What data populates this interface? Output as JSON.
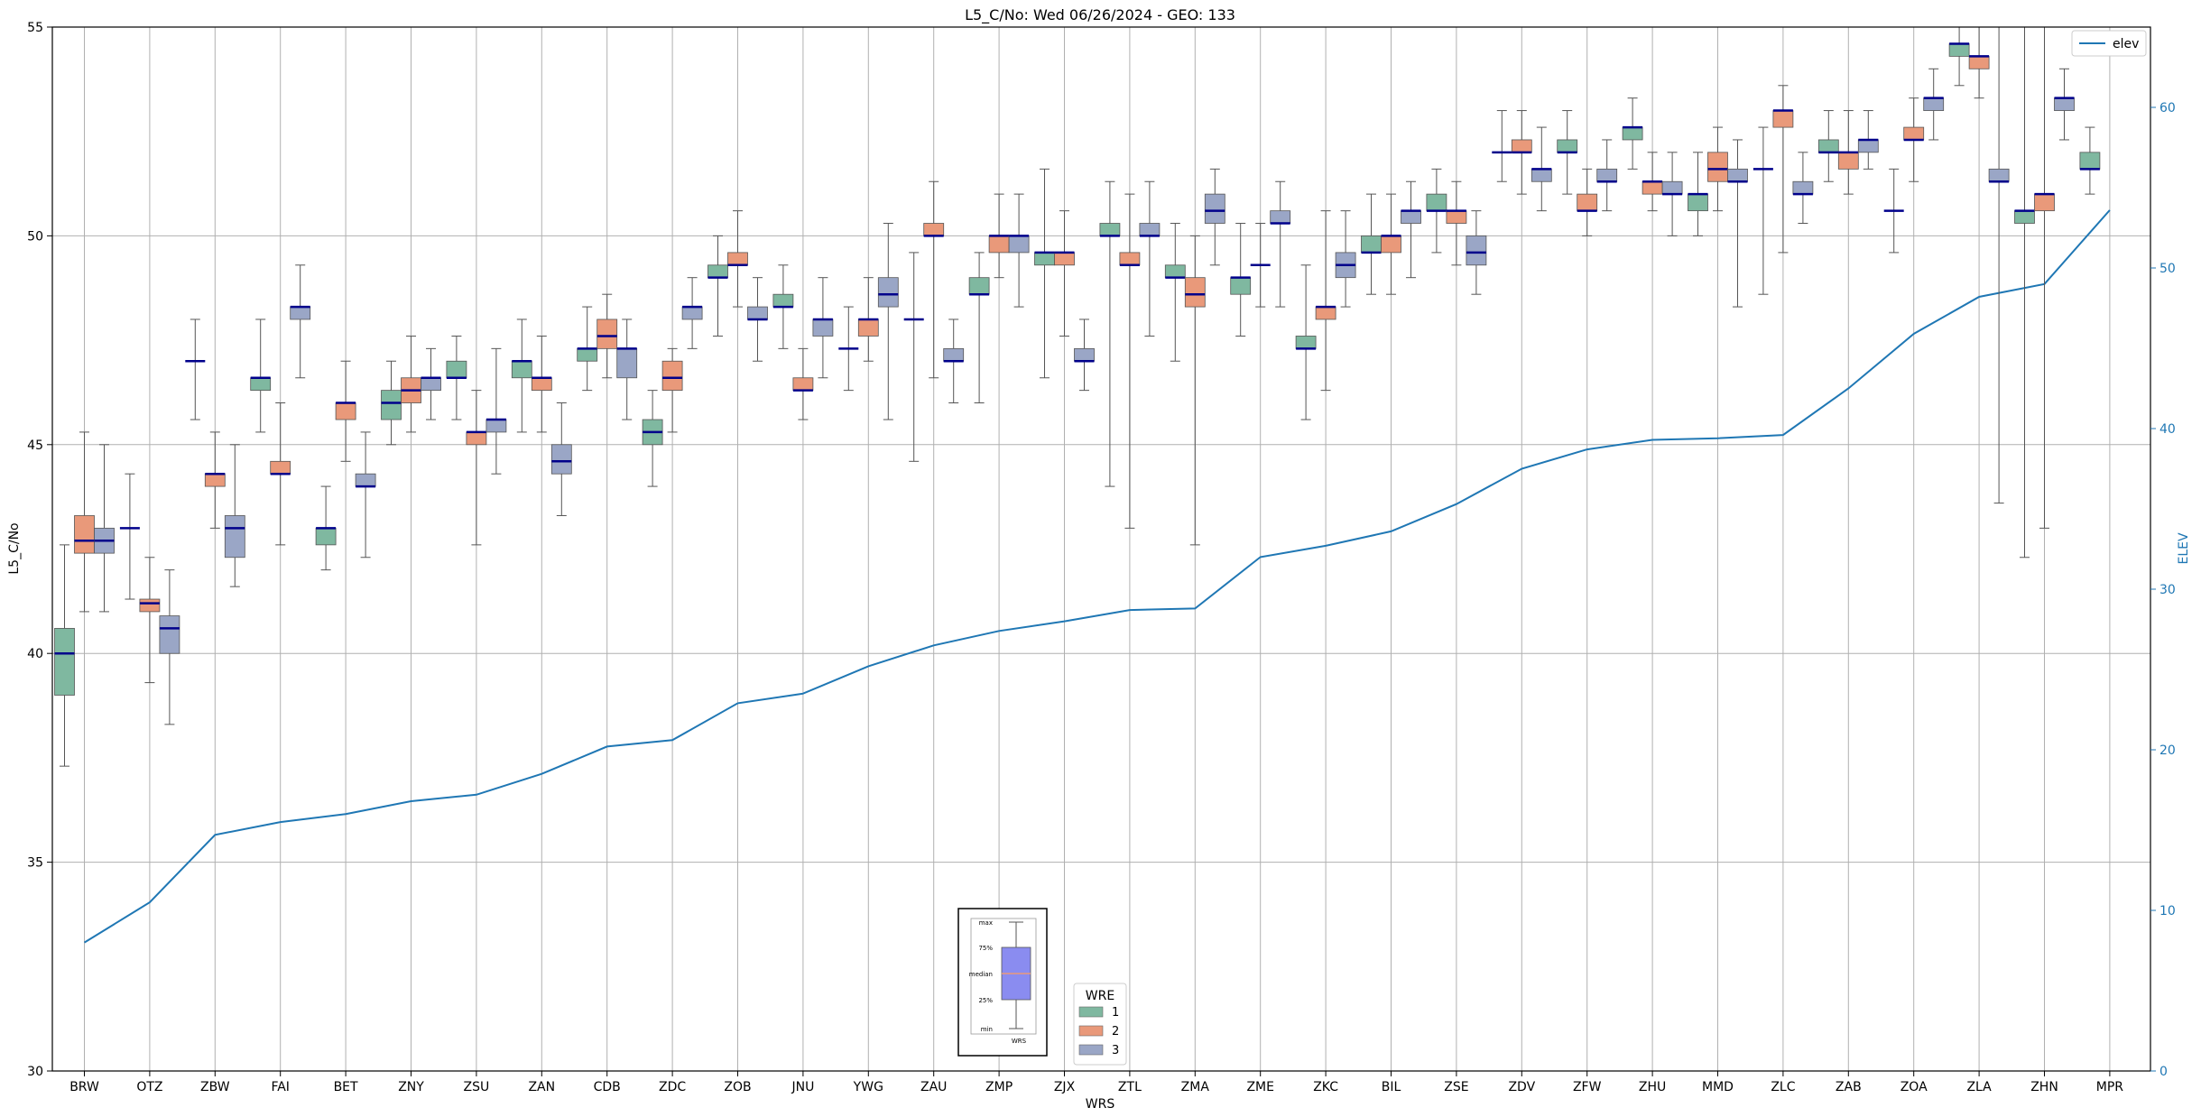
{
  "chart_data": {
    "type": "box",
    "title": "L5_C/No: Wed 06/26/2024 - GEO: 133",
    "xlabel": "WRS",
    "ylabel": "L5_C/No",
    "y2label": "ELEV",
    "ylim": [
      30,
      55
    ],
    "y2lim": [
      0,
      65
    ],
    "yticks": [
      30,
      35,
      40,
      45,
      50,
      55
    ],
    "y2ticks": [
      0,
      10,
      20,
      30,
      40,
      50,
      60
    ],
    "grid": true,
    "categories": [
      "BRW",
      "OTZ",
      "ZBW",
      "FAI",
      "BET",
      "ZNY",
      "ZSU",
      "ZAN",
      "CDB",
      "ZDC",
      "ZOB",
      "JNU",
      "YWG",
      "ZAU",
      "ZMP",
      "ZJX",
      "ZTL",
      "ZMA",
      "ZME",
      "ZKC",
      "BIL",
      "ZSE",
      "ZDV",
      "ZFW",
      "ZHU",
      "MMD",
      "ZLC",
      "ZAB",
      "ZOA",
      "ZLA",
      "ZHN",
      "MPR"
    ],
    "legend": {
      "title": "WRE",
      "placement": "bottom-center",
      "entries": [
        {
          "name": "1",
          "color": "#7fb8a0"
        },
        {
          "name": "2",
          "color": "#e9997a"
        },
        {
          "name": "3",
          "color": "#9aa6c6"
        }
      ]
    },
    "line_legend": {
      "label": "elev",
      "placement": "top-right",
      "color": "#1f77b4"
    },
    "inset_key": {
      "labels": [
        "max",
        "75%",
        "median",
        "25%",
        "min"
      ],
      "xlabel": "WRS"
    },
    "median_color": "#00008b",
    "elev_line": {
      "name": "elev",
      "color": "#1f77b4",
      "values": [
        8,
        10.5,
        14.7,
        15.5,
        16,
        16.8,
        17.2,
        18.5,
        20.2,
        20.6,
        22.9,
        23.5,
        25.2,
        26.5,
        27.4,
        28,
        28.7,
        28.8,
        32,
        32.7,
        33.6,
        35.3,
        37.5,
        38.7,
        39.3,
        39.4,
        39.6,
        42.5,
        45.9,
        48.2,
        49,
        53.6
      ]
    },
    "boxes": [
      [
        {
          "min": 37.3,
          "q1": 39,
          "median": 40,
          "q3": 40.6,
          "max": 42.6
        },
        {
          "min": 41,
          "q1": 42.4,
          "median": 42.7,
          "q3": 43.3,
          "max": 45.3
        },
        {
          "min": 41,
          "q1": 42.4,
          "median": 42.7,
          "q3": 43,
          "max": 45
        }
      ],
      [
        {
          "min": 41.3,
          "q1": 43,
          "median": 43,
          "q3": 43,
          "max": 44.3
        },
        {
          "min": 39.3,
          "q1": 41,
          "median": 41.2,
          "q3": 41.3,
          "max": 42.3
        },
        {
          "min": 38.3,
          "q1": 40,
          "median": 40.6,
          "q3": 40.9,
          "max": 42
        }
      ],
      [
        {
          "min": 45.6,
          "q1": 47,
          "median": 47,
          "q3": 47,
          "max": 48
        },
        {
          "min": 43,
          "q1": 44,
          "median": 44.3,
          "q3": 44.3,
          "max": 45.3
        },
        {
          "min": 41.6,
          "q1": 42.3,
          "median": 43,
          "q3": 43.3,
          "max": 45
        }
      ],
      [
        {
          "min": 45.3,
          "q1": 46.3,
          "median": 46.6,
          "q3": 46.6,
          "max": 48
        },
        {
          "min": 42.6,
          "q1": 44.3,
          "median": 44.3,
          "q3": 44.6,
          "max": 46
        },
        {
          "min": 46.6,
          "q1": 48,
          "median": 48.3,
          "q3": 48.3,
          "max": 49.3
        }
      ],
      [
        {
          "min": 42,
          "q1": 42.6,
          "median": 43,
          "q3": 43,
          "max": 44
        },
        {
          "min": 44.6,
          "q1": 45.6,
          "median": 46,
          "q3": 46,
          "max": 47
        },
        {
          "min": 42.3,
          "q1": 44,
          "median": 44,
          "q3": 44.3,
          "max": 45.3
        }
      ],
      [
        {
          "min": 45,
          "q1": 45.6,
          "median": 46,
          "q3": 46.3,
          "max": 47
        },
        {
          "min": 45.3,
          "q1": 46,
          "median": 46.3,
          "q3": 46.6,
          "max": 47.6
        },
        {
          "min": 45.6,
          "q1": 46.3,
          "median": 46.6,
          "q3": 46.6,
          "max": 47.3
        }
      ],
      [
        {
          "min": 45.6,
          "q1": 46.6,
          "median": 46.6,
          "q3": 47,
          "max": 47.6
        },
        {
          "min": 42.6,
          "q1": 45,
          "median": 45.3,
          "q3": 45.3,
          "max": 46.3
        },
        {
          "min": 44.3,
          "q1": 45.3,
          "median": 45.6,
          "q3": 45.6,
          "max": 47.3
        }
      ],
      [
        {
          "min": 45.3,
          "q1": 46.6,
          "median": 47,
          "q3": 47,
          "max": 48
        },
        {
          "min": 45.3,
          "q1": 46.3,
          "median": 46.6,
          "q3": 46.6,
          "max": 47.6
        },
        {
          "min": 43.3,
          "q1": 44.3,
          "median": 44.6,
          "q3": 45,
          "max": 46
        }
      ],
      [
        {
          "min": 46.3,
          "q1": 47,
          "median": 47.3,
          "q3": 47.3,
          "max": 48.3
        },
        {
          "min": 46.6,
          "q1": 47.3,
          "median": 47.6,
          "q3": 48,
          "max": 48.6
        },
        {
          "min": 45.6,
          "q1": 46.6,
          "median": 47.3,
          "q3": 47.3,
          "max": 48
        }
      ],
      [
        {
          "min": 44,
          "q1": 45,
          "median": 45.3,
          "q3": 45.6,
          "max": 46.3
        },
        {
          "min": 45.3,
          "q1": 46.3,
          "median": 46.6,
          "q3": 47,
          "max": 47.3
        },
        {
          "min": 47.3,
          "q1": 48,
          "median": 48.3,
          "q3": 48.3,
          "max": 49
        }
      ],
      [
        {
          "min": 47.6,
          "q1": 49,
          "median": 49,
          "q3": 49.3,
          "max": 50
        },
        {
          "min": 48.3,
          "q1": 49.3,
          "median": 49.3,
          "q3": 49.6,
          "max": 50.6
        },
        {
          "min": 47,
          "q1": 48,
          "median": 48,
          "q3": 48.3,
          "max": 49
        }
      ],
      [
        {
          "min": 47.3,
          "q1": 48.3,
          "median": 48.3,
          "q3": 48.6,
          "max": 49.3
        },
        {
          "min": 45.6,
          "q1": 46.3,
          "median": 46.3,
          "q3": 46.6,
          "max": 47.3
        },
        {
          "min": 46.6,
          "q1": 47.6,
          "median": 48,
          "q3": 48,
          "max": 49
        }
      ],
      [
        {
          "min": 46.3,
          "q1": 47.3,
          "median": 47.3,
          "q3": 47.3,
          "max": 48.3
        },
        {
          "min": 47,
          "q1": 47.6,
          "median": 48,
          "q3": 48,
          "max": 49
        },
        {
          "min": 45.6,
          "q1": 48.3,
          "median": 48.6,
          "q3": 49,
          "max": 50.3
        }
      ],
      [
        {
          "min": 44.6,
          "q1": 48,
          "median": 48,
          "q3": 48,
          "max": 49.6
        },
        {
          "min": 46.6,
          "q1": 50,
          "median": 50,
          "q3": 50.3,
          "max": 51.3
        },
        {
          "min": 46,
          "q1": 47,
          "median": 47,
          "q3": 47.3,
          "max": 48
        }
      ],
      [
        {
          "min": 46,
          "q1": 48.6,
          "median": 48.6,
          "q3": 49,
          "max": 49.6
        },
        {
          "min": 49,
          "q1": 49.6,
          "median": 50,
          "q3": 50,
          "max": 51
        },
        {
          "min": 48.3,
          "q1": 49.6,
          "median": 50,
          "q3": 50,
          "max": 51
        }
      ],
      [
        {
          "min": 46.6,
          "q1": 49.3,
          "median": 49.6,
          "q3": 49.6,
          "max": 51.6
        },
        {
          "min": 47.6,
          "q1": 49.3,
          "median": 49.6,
          "q3": 49.6,
          "max": 50.6
        },
        {
          "min": 46.3,
          "q1": 47,
          "median": 47,
          "q3": 47.3,
          "max": 48
        }
      ],
      [
        {
          "min": 44,
          "q1": 50,
          "median": 50,
          "q3": 50.3,
          "max": 51.3
        },
        {
          "min": 43,
          "q1": 49.3,
          "median": 49.3,
          "q3": 49.6,
          "max": 51
        },
        {
          "min": 47.6,
          "q1": 50,
          "median": 50,
          "q3": 50.3,
          "max": 51.3
        }
      ],
      [
        {
          "min": 47,
          "q1": 49,
          "median": 49,
          "q3": 49.3,
          "max": 50.3
        },
        {
          "min": 42.6,
          "q1": 48.3,
          "median": 48.6,
          "q3": 49,
          "max": 50
        },
        {
          "min": 49.3,
          "q1": 50.3,
          "median": 50.6,
          "q3": 51,
          "max": 51.6
        }
      ],
      [
        {
          "min": 47.6,
          "q1": 48.6,
          "median": 49,
          "q3": 49,
          "max": 50.3
        },
        {
          "min": 48.3,
          "q1": 49.3,
          "median": 49.3,
          "q3": 49.3,
          "max": 50.3
        },
        {
          "min": 48.3,
          "q1": 50.3,
          "median": 50.3,
          "q3": 50.6,
          "max": 51.3
        }
      ],
      [
        {
          "min": 45.6,
          "q1": 47.3,
          "median": 47.3,
          "q3": 47.6,
          "max": 49.3
        },
        {
          "min": 46.3,
          "q1": 48,
          "median": 48.3,
          "q3": 48.3,
          "max": 50.6
        },
        {
          "min": 48.3,
          "q1": 49,
          "median": 49.3,
          "q3": 49.6,
          "max": 50.6
        }
      ],
      [
        {
          "min": 48.6,
          "q1": 49.6,
          "median": 49.6,
          "q3": 50,
          "max": 51
        },
        {
          "min": 48.6,
          "q1": 49.6,
          "median": 50,
          "q3": 50,
          "max": 51
        },
        {
          "min": 49,
          "q1": 50.3,
          "median": 50.6,
          "q3": 50.6,
          "max": 51.3
        }
      ],
      [
        {
          "min": 49.6,
          "q1": 50.6,
          "median": 50.6,
          "q3": 51,
          "max": 51.6
        },
        {
          "min": 49.3,
          "q1": 50.3,
          "median": 50.6,
          "q3": 50.6,
          "max": 51.3
        },
        {
          "min": 48.6,
          "q1": 49.3,
          "median": 49.6,
          "q3": 50,
          "max": 50.6
        }
      ],
      [
        {
          "min": 51.3,
          "q1": 52,
          "median": 52,
          "q3": 52,
          "max": 53
        },
        {
          "min": 51,
          "q1": 52,
          "median": 52,
          "q3": 52.3,
          "max": 53
        },
        {
          "min": 50.6,
          "q1": 51.3,
          "median": 51.6,
          "q3": 51.6,
          "max": 52.6
        }
      ],
      [
        {
          "min": 51,
          "q1": 52,
          "median": 52,
          "q3": 52.3,
          "max": 53
        },
        {
          "min": 50,
          "q1": 50.6,
          "median": 50.6,
          "q3": 51,
          "max": 51.6
        },
        {
          "min": 50.6,
          "q1": 51.3,
          "median": 51.3,
          "q3": 51.6,
          "max": 52.3
        }
      ],
      [
        {
          "min": 51.6,
          "q1": 52.3,
          "median": 52.6,
          "q3": 52.6,
          "max": 53.3
        },
        {
          "min": 50.6,
          "q1": 51,
          "median": 51.3,
          "q3": 51.3,
          "max": 52
        },
        {
          "min": 50,
          "q1": 51,
          "median": 51,
          "q3": 51.3,
          "max": 52
        }
      ],
      [
        {
          "min": 50,
          "q1": 50.6,
          "median": 51,
          "q3": 51,
          "max": 52
        },
        {
          "min": 50.6,
          "q1": 51.3,
          "median": 51.6,
          "q3": 52,
          "max": 52.6
        },
        {
          "min": 48.3,
          "q1": 51.3,
          "median": 51.3,
          "q3": 51.6,
          "max": 52.3
        }
      ],
      [
        {
          "min": 48.6,
          "q1": 51.6,
          "median": 51.6,
          "q3": 51.6,
          "max": 52.6
        },
        {
          "min": 49.6,
          "q1": 52.6,
          "median": 53,
          "q3": 53,
          "max": 53.6
        },
        {
          "min": 50.3,
          "q1": 51,
          "median": 51,
          "q3": 51.3,
          "max": 52
        }
      ],
      [
        {
          "min": 51.3,
          "q1": 52,
          "median": 52,
          "q3": 52.3,
          "max": 53
        },
        {
          "min": 51,
          "q1": 51.6,
          "median": 52,
          "q3": 52,
          "max": 53
        },
        {
          "min": 51.6,
          "q1": 52,
          "median": 52.3,
          "q3": 52.3,
          "max": 53
        }
      ],
      [
        {
          "min": 49.6,
          "q1": 50.6,
          "median": 50.6,
          "q3": 50.6,
          "max": 51.6
        },
        {
          "min": 51.3,
          "q1": 52.3,
          "median": 52.3,
          "q3": 52.6,
          "max": 53.3
        },
        {
          "min": 52.3,
          "q1": 53,
          "median": 53.3,
          "q3": 53.3,
          "max": 54
        }
      ],
      [
        {
          "min": 53.6,
          "q1": 54.3,
          "median": 54.6,
          "q3": 54.6,
          "max": 55
        },
        {
          "min": 53.3,
          "q1": 54,
          "median": 54.3,
          "q3": 54.3,
          "max": 55
        },
        {
          "min": 43.6,
          "q1": 51.3,
          "median": 51.3,
          "q3": 51.6,
          "max": 55
        }
      ],
      [
        {
          "min": 42.3,
          "q1": 50.3,
          "median": 50.6,
          "q3": 50.6,
          "max": 55
        },
        {
          "min": 43,
          "q1": 50.6,
          "median": 51,
          "q3": 51,
          "max": 55
        },
        {
          "min": 52.3,
          "q1": 53,
          "median": 53.3,
          "q3": 53.3,
          "max": 54
        }
      ],
      [
        {
          "min": 51,
          "q1": 51.6,
          "median": 51.6,
          "q3": 52,
          "max": 52.6
        },
        null,
        null
      ]
    ]
  }
}
